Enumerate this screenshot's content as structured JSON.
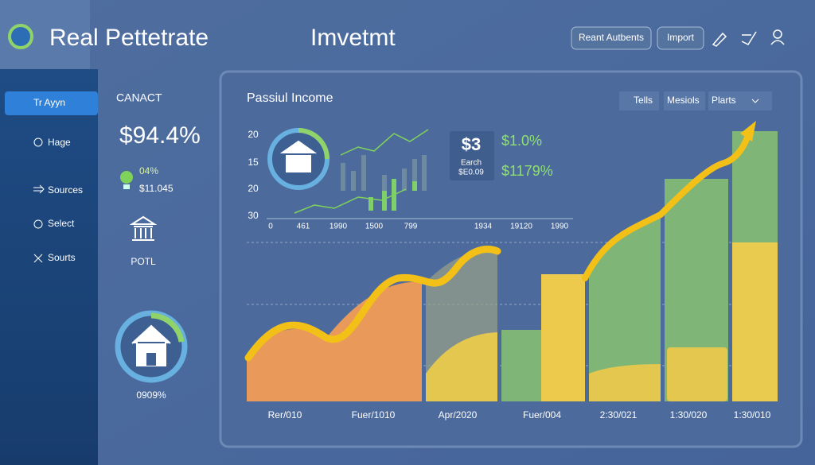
{
  "header": {
    "title": "Real Pettetrate",
    "center_title": "Imvetmt",
    "buttons": [
      "Reant Autbents",
      "Import"
    ]
  },
  "sidebar": {
    "items": [
      "Tr Ayyn",
      "Hage",
      "Sources",
      "Select",
      "Sourts"
    ]
  },
  "summary": {
    "label": "CANACT",
    "value": "$94.4%",
    "stat_percent": "04%",
    "stat_amount": "$11.045",
    "icon_label": "POTL",
    "ring_label": "0909%"
  },
  "main": {
    "title": "Passiul Income",
    "tabs": [
      "Tells",
      "Mesiols",
      "Plarts"
    ],
    "mini_chart": {
      "y_labels": [
        "20",
        "15",
        "20",
        "30"
      ],
      "x_labels": [
        "0",
        "461",
        "1990",
        "1500",
        "799",
        "1934",
        "19120",
        "1990"
      ]
    },
    "stat_box": {
      "value": "$3",
      "label": "Earch",
      "sub": "$E0.09"
    },
    "stats": [
      "$1.0%",
      "$1179%"
    ],
    "x_labels": [
      "Rer/010",
      "Fuer/1010",
      "Apr/2020",
      "Fuer/004",
      "2:30/021",
      "1:30/020",
      "1:30/010"
    ]
  }
}
